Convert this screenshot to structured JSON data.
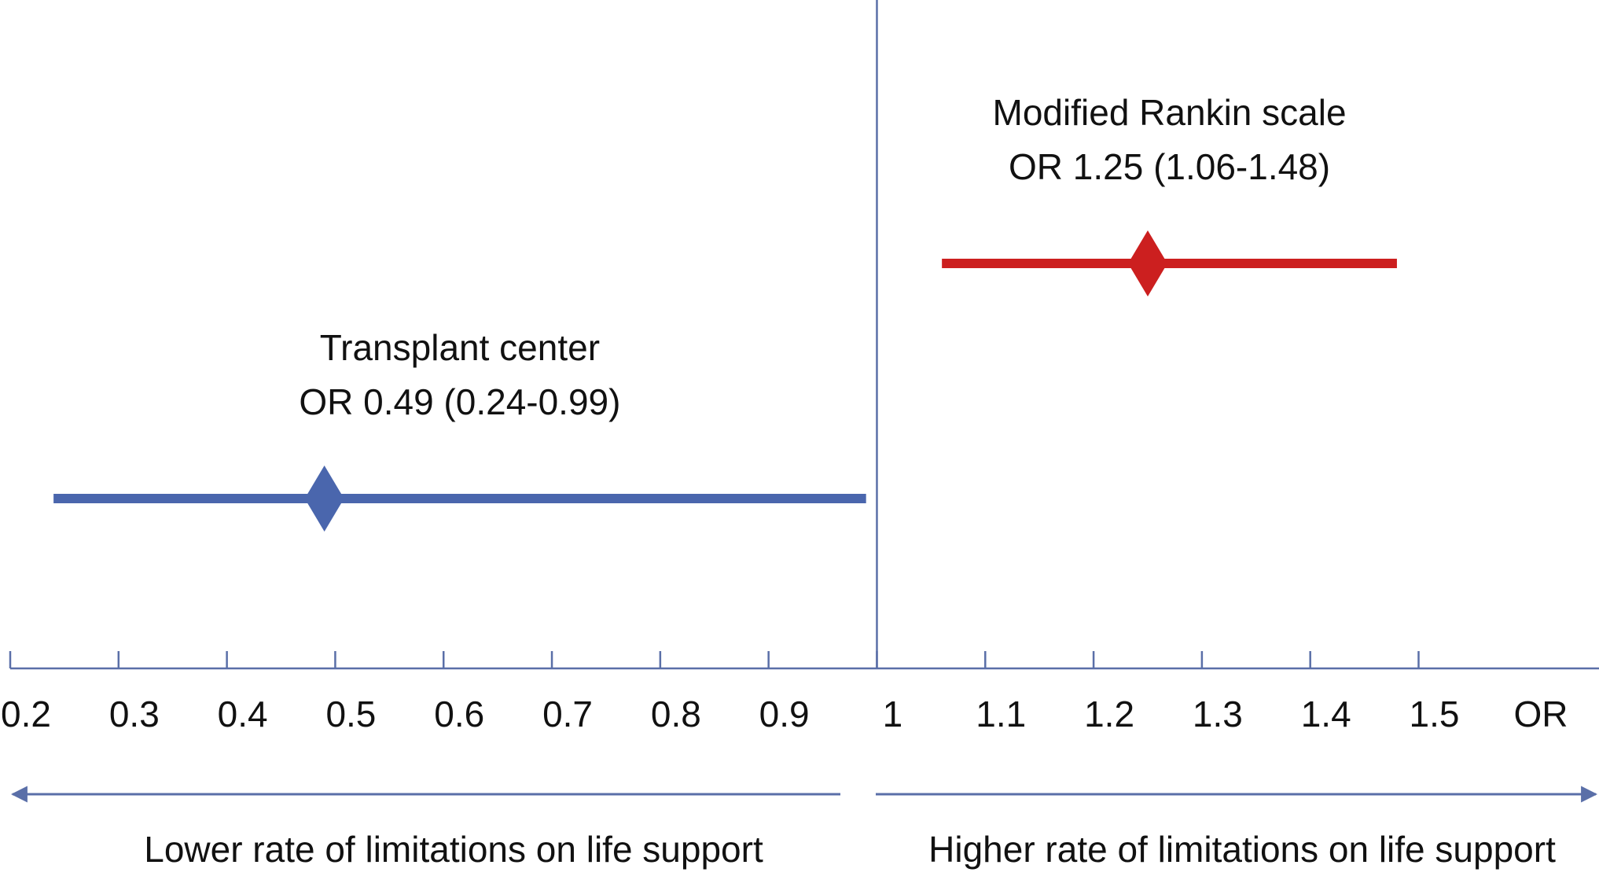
{
  "chart_data": {
    "type": "forest",
    "series": [
      {
        "name": "Transplant center",
        "label": "OR 0.49 (0.24-0.99)",
        "color": "#4a66ad",
        "value": 0.49,
        "lower": 0.24,
        "upper": 0.99
      },
      {
        "name": "Modified Rankin scale",
        "label": "OR 1.25 (1.06-1.48)",
        "color": "#cc1f1f",
        "value": 1.25,
        "lower": 1.06,
        "upper": 1.48
      }
    ],
    "reference": 1,
    "x_label": "OR",
    "xlim": [
      0.2,
      1.66
    ],
    "xticks": [
      0.2,
      0.3,
      0.4,
      0.5,
      0.6,
      0.7,
      0.8,
      0.9,
      1,
      1.1,
      1.2,
      1.3,
      1.4,
      1.5
    ],
    "axis_color": "#5a6fa8",
    "annotations": [
      "Lower rate of limitations on life support",
      "Higher rate of limitations on life support"
    ]
  }
}
